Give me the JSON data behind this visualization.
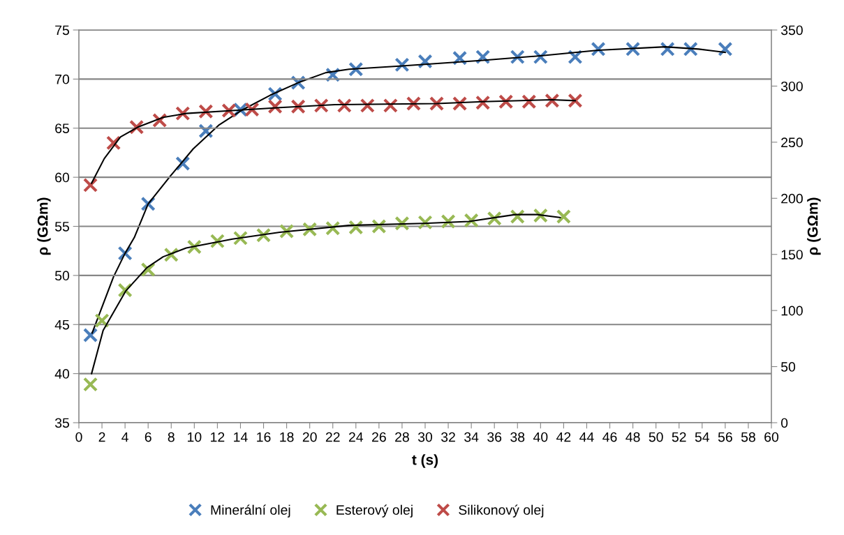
{
  "chart_data": {
    "type": "scatter",
    "xlabel": "t (s)",
    "ylabel": "ρ (GΩm)",
    "y2label": "ρ (GΩm)",
    "xlim": [
      0,
      60
    ],
    "xticks": [
      0,
      2,
      4,
      6,
      8,
      10,
      12,
      14,
      16,
      18,
      20,
      22,
      24,
      26,
      28,
      30,
      32,
      34,
      36,
      38,
      40,
      42,
      44,
      46,
      48,
      50,
      52,
      54,
      56,
      58,
      60
    ],
    "ylim": [
      35,
      75
    ],
    "yticks": [
      35,
      40,
      45,
      50,
      55,
      60,
      65,
      70,
      75
    ],
    "y2lim": [
      0,
      350
    ],
    "y2ticks": [
      0,
      50,
      100,
      150,
      200,
      250,
      300,
      350
    ],
    "grid": "y",
    "legend": "bottom",
    "marker": "cross",
    "series": [
      {
        "name": "Minerální olej",
        "color": "#4a7ebb",
        "axis": "y2",
        "x": [
          1,
          4,
          6,
          9,
          11,
          14,
          17,
          19,
          22,
          24,
          28,
          30,
          33,
          35,
          38,
          40,
          43,
          45,
          48,
          51,
          53,
          56
        ],
        "values": [
          78,
          151,
          195,
          231,
          260,
          279,
          293,
          303,
          310,
          315,
          319,
          322,
          325,
          326,
          326,
          326,
          326,
          333,
          333,
          333,
          333,
          333
        ]
      },
      {
        "name": "Esterový olej",
        "color": "#98b954",
        "x": [
          1,
          2,
          4,
          6,
          8,
          10,
          12,
          14,
          16,
          18,
          20,
          22,
          24,
          26,
          28,
          30,
          32,
          34,
          36,
          38,
          40,
          42
        ],
        "values": [
          38.9,
          45.4,
          48.5,
          50.6,
          52.1,
          52.9,
          53.5,
          53.8,
          54.1,
          54.5,
          54.7,
          54.8,
          54.9,
          55.0,
          55.3,
          55.4,
          55.5,
          55.6,
          55.8,
          56.0,
          56.1,
          56.0
        ]
      },
      {
        "name": "Silikonový olej",
        "color": "#be4b48",
        "x": [
          1,
          3,
          5,
          7,
          9,
          11,
          13,
          15,
          17,
          19,
          21,
          23,
          25,
          27,
          29,
          31,
          33,
          35,
          37,
          39,
          41,
          43
        ],
        "values": [
          59.2,
          63.5,
          65.1,
          65.8,
          66.5,
          66.7,
          66.8,
          66.9,
          67.2,
          67.2,
          67.3,
          67.3,
          67.3,
          67.3,
          67.5,
          67.5,
          67.5,
          67.6,
          67.7,
          67.7,
          67.8,
          67.8
        ]
      },
      {
        "type": "line",
        "color": "#000000",
        "axis": "y2",
        "marker": "none",
        "line_style": "solid",
        "x": [
          1.15,
          3,
          4,
          4.8,
          6,
          7.9,
          9.9,
          12.1,
          14.2,
          16.6,
          19,
          21.4,
          23.4,
          28,
          35,
          40,
          45,
          50.8,
          53.7,
          56
        ],
        "values": [
          80,
          130,
          151,
          165,
          195,
          219.5,
          244,
          265,
          279,
          292,
          303,
          312,
          315,
          318,
          323,
          327,
          332,
          335,
          333,
          330
        ]
      },
      {
        "type": "line",
        "color": "#000000",
        "marker": "none",
        "line_style": "solid",
        "x": [
          1.1,
          2.1,
          4.05,
          5.9,
          7.3,
          9.3,
          13.3,
          17.4,
          23.4,
          29.9,
          33.8,
          37.8,
          39.7,
          41.7
        ],
        "values": [
          40.0,
          44.4,
          48.4,
          50.8,
          51.9,
          52.8,
          53.7,
          54.4,
          55.1,
          55.3,
          55.5,
          56.2,
          56.2,
          55.9
        ]
      },
      {
        "type": "line",
        "color": "#000000",
        "marker": "none",
        "line_style": "solid",
        "x": [
          1.1,
          2.2,
          3.6,
          5.1,
          7.3,
          9.3,
          13.3,
          17.4,
          22.2,
          31,
          35,
          41,
          43
        ],
        "values": [
          59.4,
          61.9,
          64.1,
          65.1,
          66.1,
          66.5,
          66.8,
          67.1,
          67.4,
          67.5,
          67.7,
          67.9,
          67.8
        ]
      }
    ]
  }
}
